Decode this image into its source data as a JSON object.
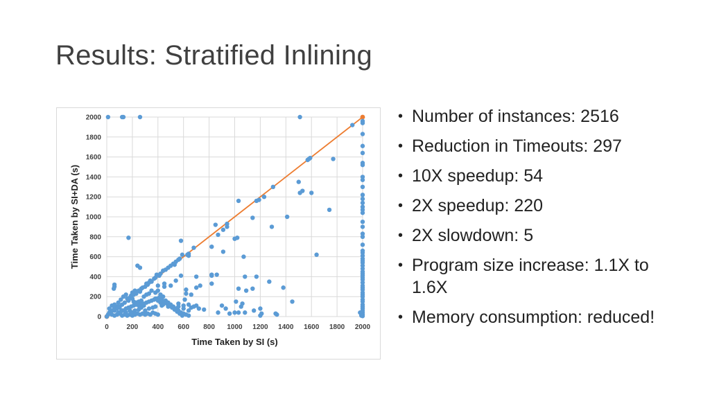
{
  "slide": {
    "title": "Results: Stratified Inlining"
  },
  "bullets": [
    "Number of instances: 2516",
    "Reduction in Timeouts: 297",
    "10X speedup: 54",
    "2X speedup: 220",
    "2X slowdown: 5",
    "Program size increase: 1.1X to 1.6X",
    "Memory consumption: reduced!"
  ],
  "chart_data": {
    "type": "scatter",
    "xlabel": "Time Taken by SI (s)",
    "ylabel": "Time Taken by SI+DA (s)",
    "xlim": [
      0,
      2000
    ],
    "ylim": [
      0,
      2000
    ],
    "xticks": [
      0,
      200,
      400,
      600,
      800,
      1000,
      1200,
      1400,
      1600,
      1800,
      2000
    ],
    "yticks": [
      0,
      200,
      400,
      600,
      800,
      1000,
      1200,
      1400,
      1600,
      1800,
      2000
    ],
    "grid": true,
    "colors": {
      "points": "#5b9bd5",
      "diagonal": "#ed7d31",
      "grid": "#d9d9d9"
    },
    "diagonal": [
      [
        0,
        0
      ],
      [
        2000,
        2000
      ]
    ],
    "points": [
      [
        10,
        2000
      ],
      [
        130,
        2000
      ],
      [
        120,
        2000
      ],
      [
        260,
        2000
      ],
      [
        1510,
        2000
      ],
      [
        1920,
        1920
      ],
      [
        2000,
        1960
      ],
      [
        2000,
        1940
      ],
      [
        2000,
        1830
      ],
      [
        2000,
        1710
      ],
      [
        2000,
        1640
      ],
      [
        2000,
        1540
      ],
      [
        2000,
        1520
      ],
      [
        2000,
        1400
      ],
      [
        2000,
        1370
      ],
      [
        2000,
        1300
      ],
      [
        2000,
        1220
      ],
      [
        2000,
        1180
      ],
      [
        2000,
        1140
      ],
      [
        2000,
        1100
      ],
      [
        2000,
        1070
      ],
      [
        2000,
        1040
      ],
      [
        2000,
        950
      ],
      [
        2000,
        900
      ],
      [
        2000,
        830
      ],
      [
        2000,
        800
      ],
      [
        2000,
        720
      ],
      [
        2000,
        660
      ],
      [
        2000,
        640
      ],
      [
        2000,
        610
      ],
      [
        2000,
        580
      ],
      [
        2000,
        560
      ],
      [
        2000,
        540
      ],
      [
        2000,
        510
      ],
      [
        2000,
        480
      ],
      [
        2000,
        450
      ],
      [
        2000,
        430
      ],
      [
        2000,
        410
      ],
      [
        2000,
        390
      ],
      [
        2000,
        370
      ],
      [
        2000,
        340
      ],
      [
        2000,
        310
      ],
      [
        2000,
        290
      ],
      [
        2000,
        270
      ],
      [
        2000,
        240
      ],
      [
        2000,
        220
      ],
      [
        2000,
        200
      ],
      [
        2000,
        170
      ],
      [
        2000,
        150
      ],
      [
        2000,
        120
      ],
      [
        2000,
        100
      ],
      [
        2000,
        80
      ],
      [
        2000,
        60
      ],
      [
        2000,
        40
      ],
      [
        2000,
        20
      ],
      [
        2000,
        5
      ],
      [
        1980,
        40
      ],
      [
        1990,
        10
      ],
      [
        1590,
        1590
      ],
      [
        1570,
        1570
      ],
      [
        1580,
        1580
      ],
      [
        1500,
        1350
      ],
      [
        1510,
        1240
      ],
      [
        1600,
        1240
      ],
      [
        1770,
        1580
      ],
      [
        1740,
        1070
      ],
      [
        1300,
        1300
      ],
      [
        1230,
        1200
      ],
      [
        1190,
        1170
      ],
      [
        1170,
        1160
      ],
      [
        1030,
        1160
      ],
      [
        1140,
        990
      ],
      [
        1410,
        1000
      ],
      [
        1290,
        900
      ],
      [
        1640,
        620
      ],
      [
        1530,
        1260
      ],
      [
        850,
        920
      ],
      [
        940,
        930
      ],
      [
        940,
        900
      ],
      [
        910,
        870
      ],
      [
        870,
        820
      ],
      [
        820,
        700
      ],
      [
        910,
        650
      ],
      [
        1020,
        790
      ],
      [
        1000,
        780
      ],
      [
        640,
        630
      ],
      [
        640,
        610
      ],
      [
        680,
        690
      ],
      [
        570,
        580
      ],
      [
        560,
        570
      ],
      [
        530,
        520
      ],
      [
        590,
        620
      ],
      [
        630,
        620
      ],
      [
        580,
        760
      ],
      [
        820,
        420
      ],
      [
        860,
        420
      ],
      [
        820,
        410
      ],
      [
        820,
        330
      ],
      [
        1070,
        600
      ],
      [
        1080,
        400
      ],
      [
        1030,
        280
      ],
      [
        1090,
        260
      ],
      [
        1270,
        350
      ],
      [
        1170,
        400
      ],
      [
        1140,
        280
      ],
      [
        1380,
        290
      ],
      [
        1450,
        150
      ],
      [
        1200,
        80
      ],
      [
        1150,
        60
      ],
      [
        1080,
        40
      ],
      [
        1030,
        40
      ],
      [
        1000,
        40
      ],
      [
        960,
        30
      ],
      [
        930,
        80
      ],
      [
        900,
        110
      ],
      [
        870,
        40
      ],
      [
        1050,
        100
      ],
      [
        1010,
        150
      ],
      [
        1060,
        130
      ],
      [
        1200,
        10
      ],
      [
        1210,
        30
      ],
      [
        1320,
        30
      ],
      [
        1330,
        20
      ],
      [
        170,
        790
      ],
      [
        240,
        510
      ],
      [
        260,
        490
      ],
      [
        620,
        270
      ],
      [
        620,
        230
      ],
      [
        660,
        220
      ],
      [
        610,
        170
      ],
      [
        730,
        310
      ],
      [
        700,
        400
      ],
      [
        700,
        290
      ],
      [
        580,
        410
      ],
      [
        540,
        360
      ],
      [
        500,
        310
      ],
      [
        400,
        310
      ],
      [
        450,
        330
      ],
      [
        450,
        300
      ],
      [
        560,
        130
      ],
      [
        600,
        110
      ],
      [
        640,
        120
      ],
      [
        680,
        100
      ],
      [
        700,
        110
      ],
      [
        640,
        60
      ],
      [
        660,
        90
      ],
      [
        760,
        70
      ],
      [
        720,
        80
      ],
      [
        600,
        80
      ],
      [
        560,
        100
      ],
      [
        480,
        100
      ],
      [
        430,
        110
      ],
      [
        380,
        100
      ],
      [
        360,
        90
      ],
      [
        330,
        80
      ],
      [
        300,
        60
      ],
      [
        290,
        110
      ],
      [
        270,
        90
      ],
      [
        250,
        70
      ],
      [
        220,
        60
      ],
      [
        200,
        40
      ],
      [
        180,
        60
      ],
      [
        150,
        40
      ],
      [
        120,
        60
      ],
      [
        100,
        90
      ],
      [
        80,
        100
      ],
      [
        60,
        80
      ],
      [
        40,
        60
      ],
      [
        30,
        50
      ],
      [
        20,
        40
      ],
      [
        10,
        20
      ],
      [
        0,
        0
      ],
      [
        20,
        80
      ],
      [
        40,
        110
      ],
      [
        60,
        120
      ],
      [
        90,
        140
      ],
      [
        110,
        170
      ],
      [
        130,
        200
      ],
      [
        150,
        220
      ],
      [
        160,
        180
      ],
      [
        170,
        160
      ],
      [
        140,
        140
      ],
      [
        120,
        120
      ],
      [
        100,
        100
      ],
      [
        80,
        80
      ],
      [
        60,
        60
      ],
      [
        180,
        190
      ],
      [
        190,
        210
      ],
      [
        200,
        240
      ],
      [
        210,
        220
      ],
      [
        220,
        260
      ],
      [
        230,
        230
      ],
      [
        250,
        260
      ],
      [
        260,
        250
      ],
      [
        270,
        280
      ],
      [
        280,
        290
      ],
      [
        300,
        300
      ],
      [
        310,
        330
      ],
      [
        320,
        320
      ],
      [
        330,
        340
      ],
      [
        340,
        360
      ],
      [
        350,
        350
      ],
      [
        370,
        380
      ],
      [
        380,
        390
      ],
      [
        390,
        420
      ],
      [
        410,
        410
      ],
      [
        420,
        430
      ],
      [
        440,
        460
      ],
      [
        460,
        470
      ],
      [
        480,
        490
      ],
      [
        500,
        510
      ],
      [
        520,
        530
      ],
      [
        540,
        550
      ],
      [
        200,
        180
      ],
      [
        210,
        150
      ],
      [
        230,
        140
      ],
      [
        250,
        150
      ],
      [
        270,
        160
      ],
      [
        290,
        200
      ],
      [
        310,
        220
      ],
      [
        330,
        230
      ],
      [
        350,
        260
      ],
      [
        380,
        240
      ],
      [
        400,
        260
      ],
      [
        420,
        220
      ],
      [
        440,
        200
      ],
      [
        460,
        160
      ],
      [
        480,
        140
      ],
      [
        500,
        120
      ],
      [
        520,
        100
      ],
      [
        540,
        80
      ],
      [
        560,
        60
      ],
      [
        580,
        40
      ],
      [
        600,
        30
      ],
      [
        620,
        20
      ],
      [
        640,
        10
      ],
      [
        400,
        20
      ],
      [
        380,
        30
      ],
      [
        360,
        40
      ],
      [
        340,
        20
      ],
      [
        320,
        30
      ],
      [
        300,
        20
      ],
      [
        280,
        30
      ],
      [
        260,
        20
      ],
      [
        240,
        30
      ],
      [
        220,
        20
      ],
      [
        200,
        10
      ],
      [
        180,
        20
      ],
      [
        160,
        10
      ],
      [
        140,
        20
      ],
      [
        120,
        10
      ],
      [
        100,
        30
      ],
      [
        80,
        20
      ],
      [
        60,
        10
      ],
      [
        40,
        20
      ],
      [
        90,
        40
      ],
      [
        110,
        50
      ],
      [
        130,
        60
      ],
      [
        150,
        80
      ],
      [
        170,
        90
      ],
      [
        190,
        100
      ],
      [
        210,
        110
      ],
      [
        230,
        120
      ],
      [
        250,
        110
      ],
      [
        270,
        120
      ],
      [
        290,
        130
      ],
      [
        310,
        140
      ],
      [
        330,
        150
      ],
      [
        350,
        160
      ],
      [
        370,
        170
      ],
      [
        390,
        180
      ],
      [
        410,
        190
      ],
      [
        430,
        170
      ],
      [
        450,
        150
      ],
      [
        470,
        130
      ],
      [
        490,
        110
      ],
      [
        510,
        90
      ],
      [
        530,
        70
      ],
      [
        550,
        50
      ],
      [
        570,
        30
      ],
      [
        590,
        10
      ],
      [
        60,
        300
      ],
      [
        60,
        320
      ],
      [
        55,
        280
      ],
      [
        380,
        180
      ],
      [
        400,
        160
      ],
      [
        420,
        140
      ],
      [
        440,
        120
      ]
    ]
  }
}
